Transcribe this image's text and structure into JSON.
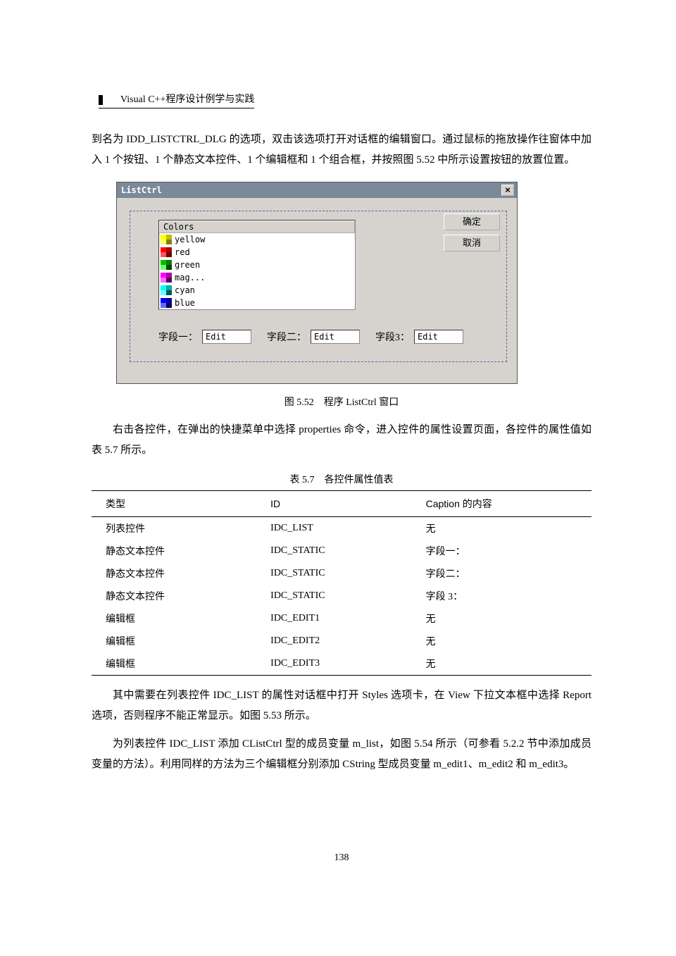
{
  "header": {
    "title": "Visual C++程序设计例学与实践"
  },
  "para1": "到名为 IDD_LISTCTRL_DLG 的选项，双击该选项打开对话框的编辑窗口。通过鼠标的拖放操作往窗体中加入 1 个按钮、1 个静态文本控件、1 个编辑框和 1 个组合框，并按照图 5.52 中所示设置按钮的放置位置。",
  "dialog": {
    "title": "ListCtrl",
    "close_glyph": "×",
    "buttons": {
      "ok": "确定",
      "cancel": "取消"
    },
    "list_header": "Colors",
    "items": [
      {
        "label": "yellow",
        "c1": "#ffff00",
        "c2": "#c0c000",
        "c3": "#ffff66",
        "c4": "#808000"
      },
      {
        "label": "red",
        "c1": "#ff0000",
        "c2": "#aa0000",
        "c3": "#ff5555",
        "c4": "#660000"
      },
      {
        "label": "green",
        "c1": "#00c000",
        "c2": "#008000",
        "c3": "#66ff66",
        "c4": "#004000"
      },
      {
        "label": "mag...",
        "c1": "#ff00ff",
        "c2": "#aa00aa",
        "c3": "#ff66ff",
        "c4": "#550055"
      },
      {
        "label": "cyan",
        "c1": "#00ffff",
        "c2": "#00aaaa",
        "c3": "#66ffff",
        "c4": "#005555"
      },
      {
        "label": "blue",
        "c1": "#0000ff",
        "c2": "#0000aa",
        "c3": "#6666ff",
        "c4": "#000055"
      }
    ],
    "fields": [
      {
        "label": "字段一：",
        "value": "Edit"
      },
      {
        "label": "字段二：",
        "value": "Edit"
      },
      {
        "label": "字段3：",
        "value": "Edit"
      }
    ]
  },
  "fig_caption": "图 5.52　程序 ListCtrl 窗口",
  "para2": "右击各控件，在弹出的快捷菜单中选择 properties 命令，进入控件的属性设置页面，各控件的属性值如表 5.7 所示。",
  "table": {
    "caption": "表 5.7　各控件属性值表",
    "columns": [
      "类型",
      "ID",
      "Caption 的内容"
    ],
    "rows": [
      [
        "列表控件",
        "IDC_LIST",
        "无"
      ],
      [
        "静态文本控件",
        "IDC_STATIC",
        "字段一："
      ],
      [
        "静态文本控件",
        "IDC_STATIC",
        "字段二："
      ],
      [
        "静态文本控件",
        "IDC_STATIC",
        "字段 3："
      ],
      [
        "编辑框",
        "IDC_EDIT1",
        "无"
      ],
      [
        "编辑框",
        "IDC_EDIT2",
        "无"
      ],
      [
        "编辑框",
        "IDC_EDIT3",
        "无"
      ]
    ]
  },
  "para3": "其中需要在列表控件 IDC_LIST 的属性对话框中打开 Styles 选项卡，在 View 下拉文本框中选择 Report 选项，否则程序不能正常显示。如图 5.53 所示。",
  "para4": "为列表控件 IDC_LIST 添加 CListCtrl 型的成员变量 m_list，如图 5.54 所示（可参看 5.2.2 节中添加成员变量的方法）。利用同样的方法为三个编辑框分别添加 CString 型成员变量 m_edit1、m_edit2 和 m_edit3。",
  "page_number": "138"
}
